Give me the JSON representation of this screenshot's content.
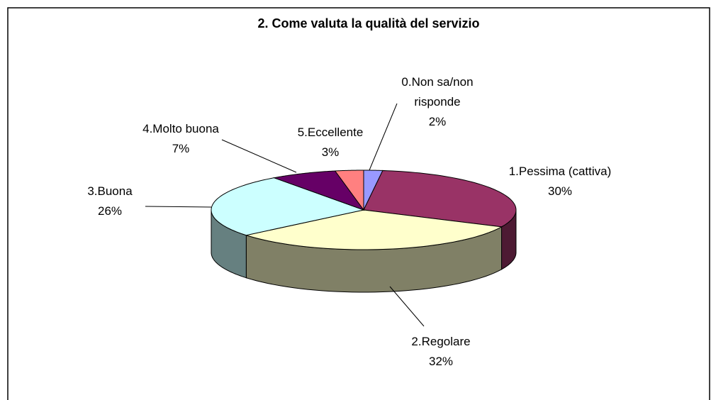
{
  "chart_data": {
    "type": "pie",
    "title": "2. Come valuta la qualità del servizio",
    "categories": [
      "0.Non sa/non risponde",
      "1.Pessima (cattiva)",
      "2.Regolare",
      "3.Buona",
      "4.Molto buona",
      "5.Eccellente"
    ],
    "values": [
      2,
      30,
      32,
      26,
      7,
      3
    ],
    "value_labels": [
      "2%",
      "30%",
      "32%",
      "26%",
      "7%",
      "3%"
    ],
    "colors": [
      "#9999ff",
      "#993366",
      "#ffffcc",
      "#ccffff",
      "#660066",
      "#ff8080"
    ]
  }
}
